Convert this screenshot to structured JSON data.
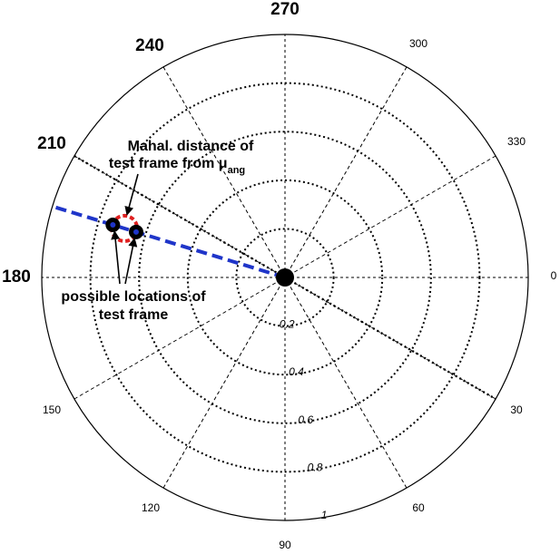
{
  "chart_data": {
    "type": "polar",
    "angle_direction": "clockwise",
    "zero_direction": "right",
    "radial_ticks": [
      "0.2",
      "0.4",
      "0.6",
      "0.8",
      "1"
    ],
    "radial_tick_values": [
      0.2,
      0.4,
      0.6,
      0.8,
      1.0
    ],
    "rmax": 1.0,
    "angle_ticks_normal": [
      "0",
      "30",
      "60",
      "90",
      "120",
      "150",
      "300",
      "330"
    ],
    "angle_ticks_normal_values": [
      0,
      30,
      60,
      90,
      120,
      150,
      300,
      330
    ],
    "angle_ticks_bold": [
      "180",
      "210",
      "240",
      "270"
    ],
    "angle_ticks_bold_values": [
      180,
      210,
      240,
      270
    ],
    "center_point": {
      "r": 0.0
    },
    "mean_direction": {
      "angle_deg": 197,
      "r_max": 1.0,
      "color": "#1f35c9",
      "style": "dashed"
    },
    "boundary_direction": {
      "angle_deg": 210,
      "style": "dotted"
    },
    "test_frame_points": [
      {
        "angle_deg": 197,
        "r": 0.74
      },
      {
        "angle_deg": 197,
        "r": 0.64
      }
    ],
    "mahal_circle": {
      "angle_deg": 197,
      "r": 0.69,
      "color": "#e02020"
    },
    "annotations": {
      "mahal_line1": "Mahal. distance of",
      "mahal_line2": "test frame from μ",
      "mahal_sub": "ang",
      "possible_line1": "possible locations of",
      "possible_line2": "test frame"
    },
    "grid": true
  }
}
